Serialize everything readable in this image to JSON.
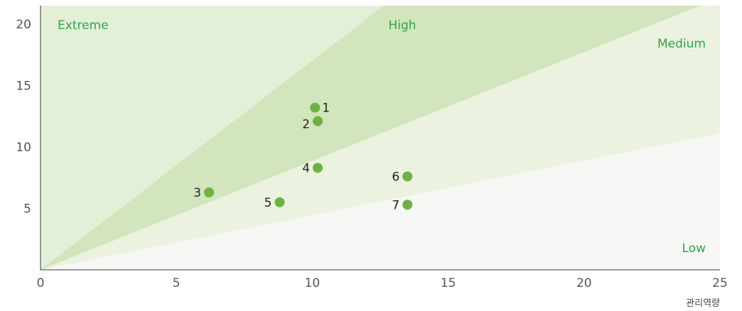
{
  "chart_data": {
    "type": "scatter",
    "xlabel": "관리역량",
    "ylabel": "",
    "xlim": [
      0,
      25
    ],
    "ylim": [
      0,
      21.5
    ],
    "xticks": [
      {
        "value": 0,
        "label": "0"
      },
      {
        "value": 5,
        "label": "5"
      },
      {
        "value": 10,
        "label": "10"
      },
      {
        "value": 15,
        "label": "15"
      },
      {
        "value": 20,
        "label": "20"
      },
      {
        "value": 25,
        "label": "25"
      }
    ],
    "yticks": [
      {
        "value": 5,
        "label": "5"
      },
      {
        "value": 10,
        "label": "10"
      },
      {
        "value": 15,
        "label": "15"
      },
      {
        "value": 20,
        "label": "20"
      }
    ],
    "zones": [
      {
        "label": "Extreme",
        "color": "#e4efd8"
      },
      {
        "label": "High",
        "color": "#d2e5bc"
      },
      {
        "label": "Medium",
        "color": "#ebf3e0"
      },
      {
        "label": "Low",
        "color": "#f7f8f6"
      }
    ],
    "points": [
      {
        "label": "1",
        "x": 10.1,
        "y": 13.2
      },
      {
        "label": "2",
        "x": 10.2,
        "y": 12.1
      },
      {
        "label": "3",
        "x": 6.2,
        "y": 6.3
      },
      {
        "label": "4",
        "x": 10.2,
        "y": 8.3
      },
      {
        "label": "5",
        "x": 8.8,
        "y": 5.5
      },
      {
        "label": "6",
        "x": 13.5,
        "y": 7.6
      },
      {
        "label": "7",
        "x": 13.5,
        "y": 5.3
      }
    ],
    "colors": {
      "point": "#6db33f",
      "zone_text": "#2aa84a",
      "axis": "#333333"
    }
  }
}
